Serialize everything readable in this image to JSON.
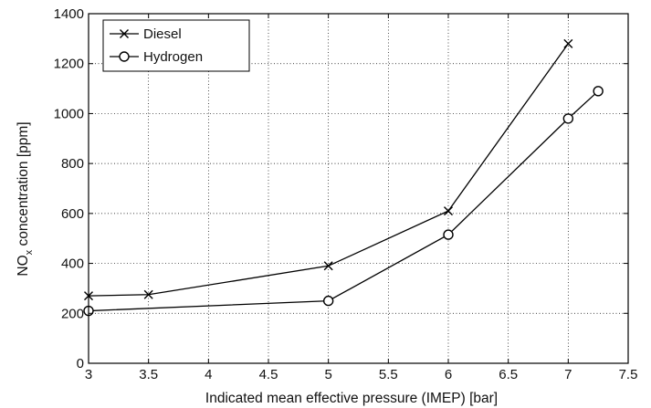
{
  "chart_data": {
    "type": "line",
    "title": "",
    "xlabel": "Indicated mean effective pressure (IMEP) [bar]",
    "ylabel": {
      "main": "NO",
      "sub": "x",
      "rest": " concentration [ppm]"
    },
    "xlim": [
      3,
      7.5
    ],
    "ylim": [
      0,
      1400
    ],
    "xticks": [
      "3",
      "3.5",
      "4",
      "4.5",
      "5",
      "5.5",
      "6",
      "6.5",
      "7",
      "7.5"
    ],
    "xtick_values": [
      3,
      3.5,
      4,
      4.5,
      5,
      5.5,
      6,
      6.5,
      7,
      7.5
    ],
    "yticks": [
      "0",
      "200",
      "400",
      "600",
      "800",
      "1000",
      "1200",
      "1400"
    ],
    "ytick_values": [
      0,
      200,
      400,
      600,
      800,
      1000,
      1200,
      1400
    ],
    "grid": true,
    "grid_style": "dotted",
    "legend_position": "top-left",
    "series": [
      {
        "name": "Diesel",
        "marker": "x",
        "color": "#000000",
        "x": [
          3,
          3.5,
          5,
          6,
          7
        ],
        "y": [
          270,
          275,
          390,
          610,
          1280
        ]
      },
      {
        "name": "Hydrogen",
        "marker": "o",
        "color": "#000000",
        "x": [
          3,
          5,
          6,
          7,
          7.25
        ],
        "y": [
          210,
          250,
          515,
          980,
          1090
        ]
      }
    ]
  }
}
